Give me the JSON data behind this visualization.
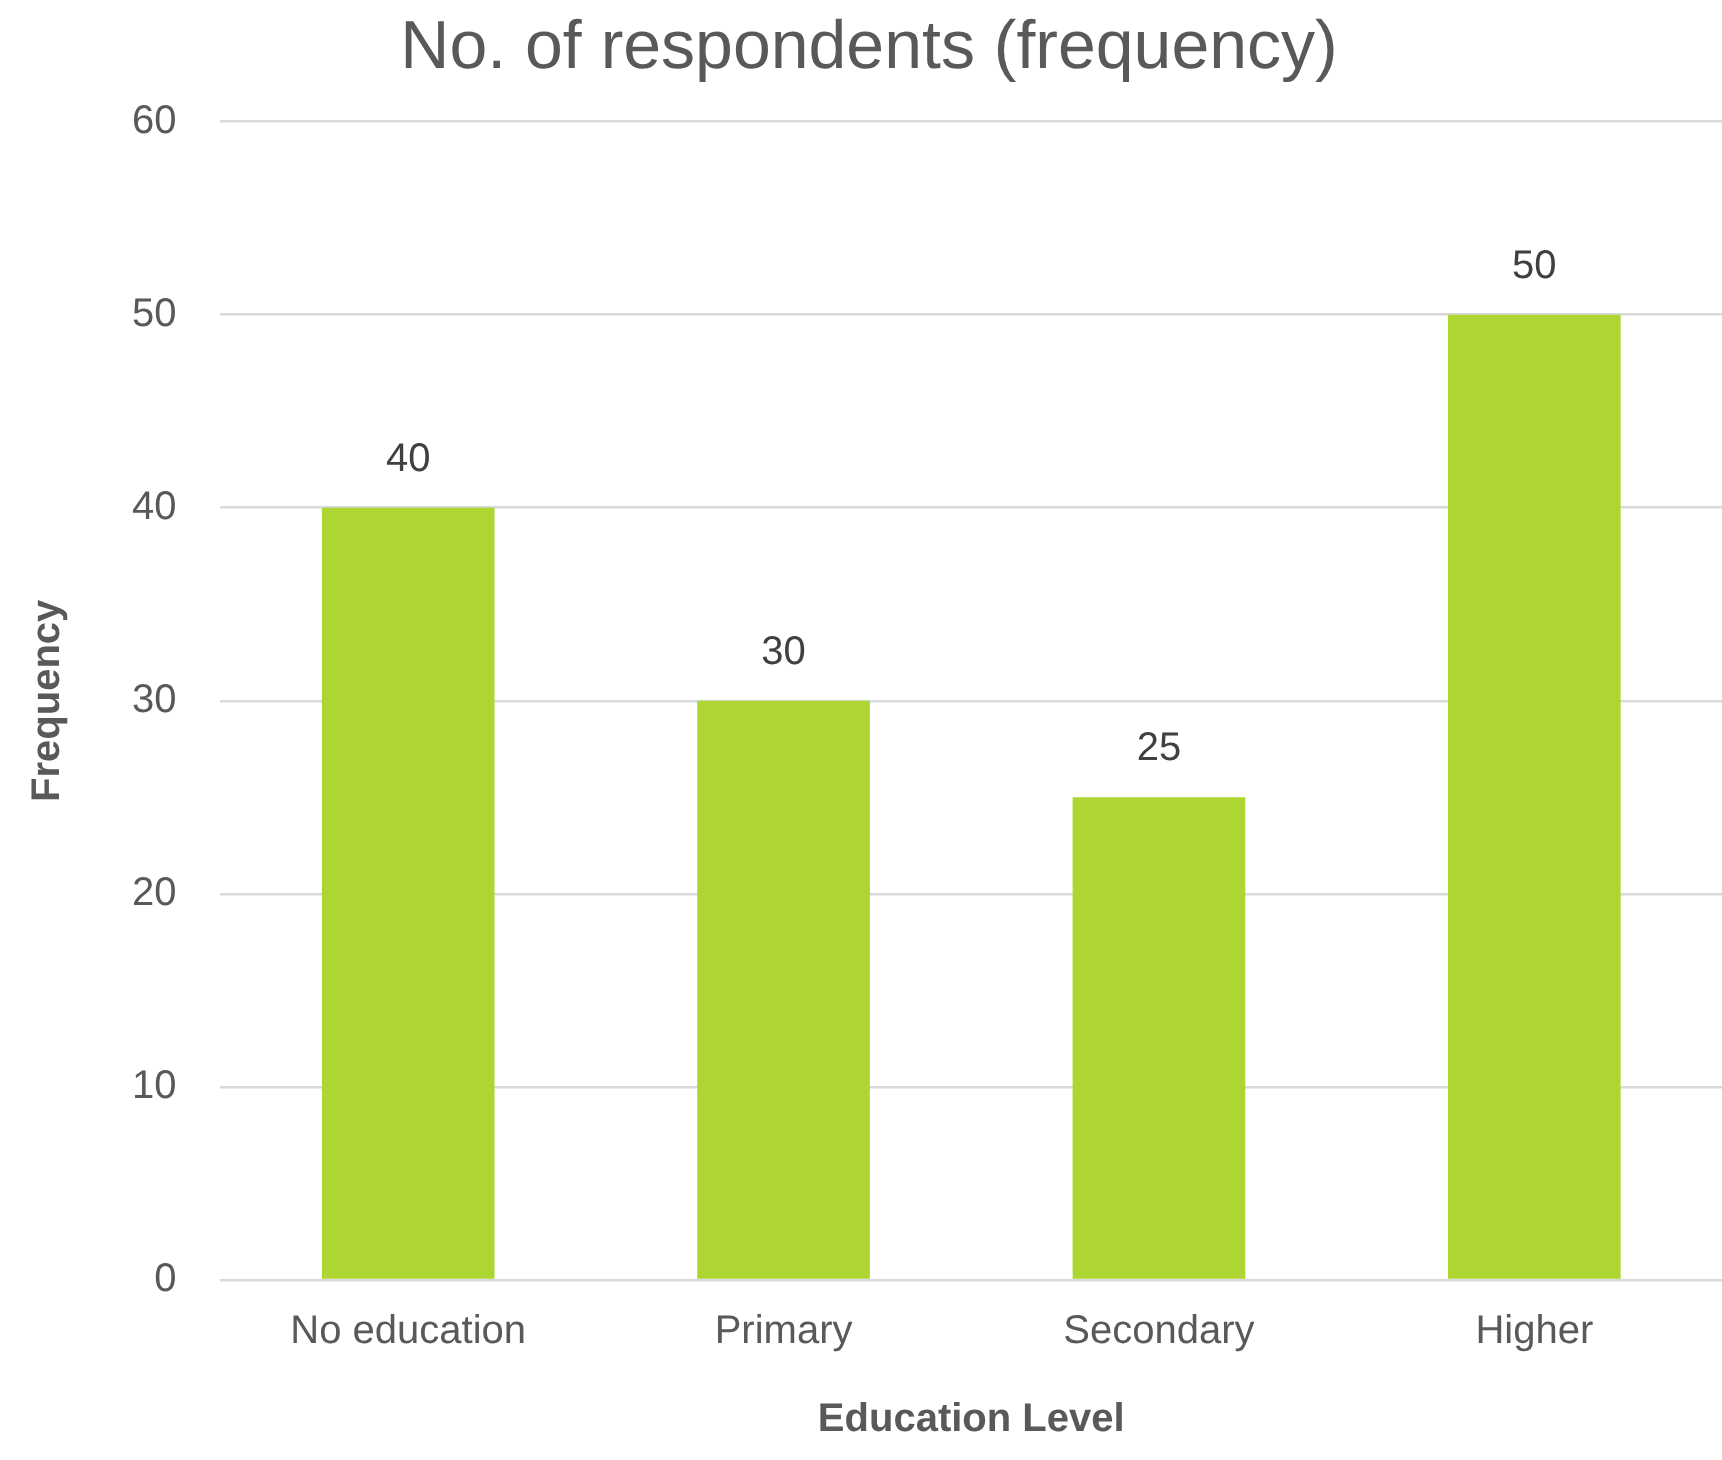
{
  "chart_data": {
    "type": "bar",
    "title": "No. of respondents (frequency)",
    "xlabel": "Education Level",
    "ylabel": "Frequency",
    "categories": [
      "No education",
      "Primary",
      "Secondary",
      "Higher"
    ],
    "values": [
      40,
      30,
      25,
      50
    ],
    "color": "#add633",
    "ylim": [
      0,
      60
    ],
    "yticks": [
      0,
      10,
      20,
      30,
      40,
      50,
      60
    ],
    "grid": "y",
    "data_labels": true,
    "legend": false
  }
}
